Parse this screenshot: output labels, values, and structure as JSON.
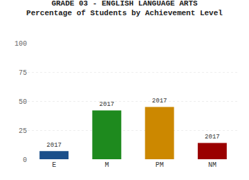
{
  "chart_data": {
    "type": "bar",
    "title": "GRADE 03 - ENGLISH LANGUAGE ARTS",
    "subtitle": "Percentage of Students by Achievement Level",
    "categories": [
      "E",
      "M",
      "PM",
      "NM"
    ],
    "values": [
      7,
      42,
      45,
      14
    ],
    "colors": [
      "#1a4f8a",
      "#1e8a1e",
      "#cc8800",
      "#9a0000"
    ],
    "annotations": [
      "2017",
      "2017",
      "2017",
      "2017"
    ],
    "ylim": [
      0,
      100
    ],
    "yticks": [
      0,
      25,
      50,
      75,
      100
    ],
    "grid": true
  }
}
